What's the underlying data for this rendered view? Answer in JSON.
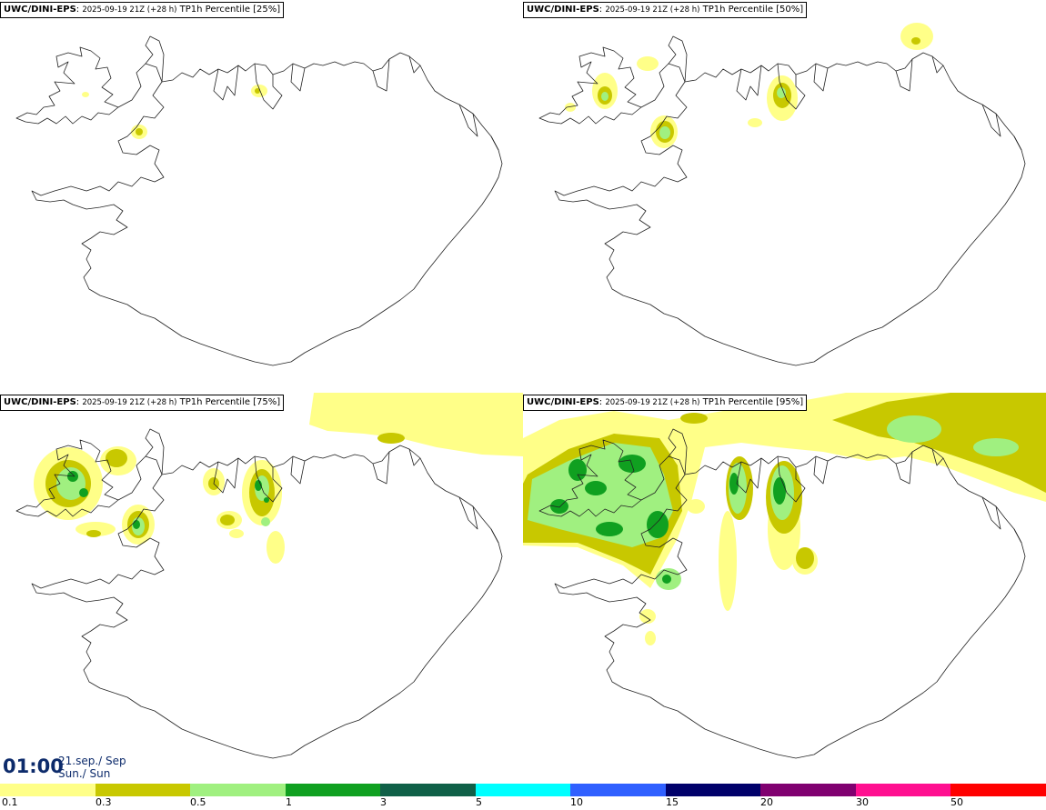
{
  "panels": [
    {
      "model": "UWC/DINI-EPS",
      "run": "2025-09-19 21Z (+28 h)",
      "field": "TP1h Percentile [25%]"
    },
    {
      "model": "UWC/DINI-EPS",
      "run": "2025-09-19 21Z (+28 h)",
      "field": "TP1h Percentile [50%]"
    },
    {
      "model": "UWC/DINI-EPS",
      "run": "2025-09-19 21Z (+28 h)",
      "field": "TP1h Percentile [75%]"
    },
    {
      "model": "UWC/DINI-EPS",
      "run": "2025-09-19 21Z (+28 h)",
      "field": "TP1h Percentile [95%]"
    }
  ],
  "valid": {
    "time": "01:00",
    "date": "21.sep./ Sep",
    "day": "Sun./ Sun"
  },
  "legend": {
    "colors": [
      "#ffff88",
      "#c8c800",
      "#a0f080",
      "#10a020",
      "#106048",
      "#00ffff",
      "#3060ff",
      "#00006a",
      "#800070",
      "#ff1090",
      "#ff0000"
    ],
    "labels": [
      "0.1",
      "0.3",
      "0.5",
      "1",
      "3",
      "5",
      "10",
      "15",
      "20",
      "30",
      "50"
    ]
  },
  "map_colors": {
    "coast": "#222222",
    "light": "#ffff88",
    "olive": "#c8c800",
    "lgreen": "#a0f080",
    "green": "#10a020"
  }
}
